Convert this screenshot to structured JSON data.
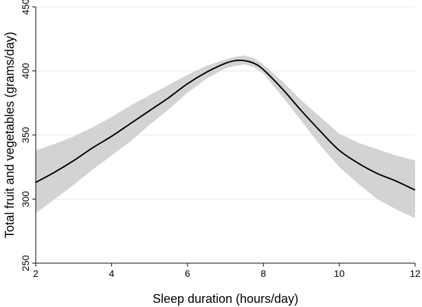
{
  "chart_data": {
    "type": "line",
    "title": "",
    "xlabel": "Sleep duration (hours/day)",
    "ylabel": "Total fruit and vegetables (grams/day)",
    "xlim": [
      2,
      12
    ],
    "ylim": [
      250,
      450
    ],
    "xticks": [
      2,
      4,
      6,
      8,
      10,
      12
    ],
    "yticks": [
      250,
      300,
      350,
      400,
      450
    ],
    "grid": true,
    "legend": "none",
    "series": [
      {
        "x": [
          2,
          2.5,
          3,
          3.5,
          4,
          4.5,
          5,
          5.5,
          6,
          6.5,
          7,
          7.25,
          7.5,
          7.75,
          8,
          8.5,
          9,
          9.5,
          10,
          10.5,
          11,
          11.5,
          12
        ],
        "y": [
          313,
          321,
          330,
          340,
          349,
          359,
          369,
          379,
          390,
          399,
          406,
          408,
          408,
          406,
          401,
          386,
          369,
          353,
          338,
          328,
          320,
          314,
          307
        ],
        "ci_lower": [
          289,
          300,
          311,
          323,
          334,
          345,
          358,
          370,
          383,
          394,
          402,
          404,
          405,
          403,
          398,
          380,
          361,
          342,
          325,
          312,
          300,
          292,
          285
        ],
        "ci_upper": [
          338,
          343,
          349,
          356,
          364,
          373,
          381,
          389,
          397,
          404,
          409,
          411,
          412,
          410,
          405,
          392,
          377,
          364,
          351,
          344,
          339,
          334,
          330
        ]
      }
    ],
    "colors": {
      "line": "#000000",
      "band": "#d3d3d3",
      "grid": "#e8e8e8",
      "axis": "#000000"
    }
  }
}
